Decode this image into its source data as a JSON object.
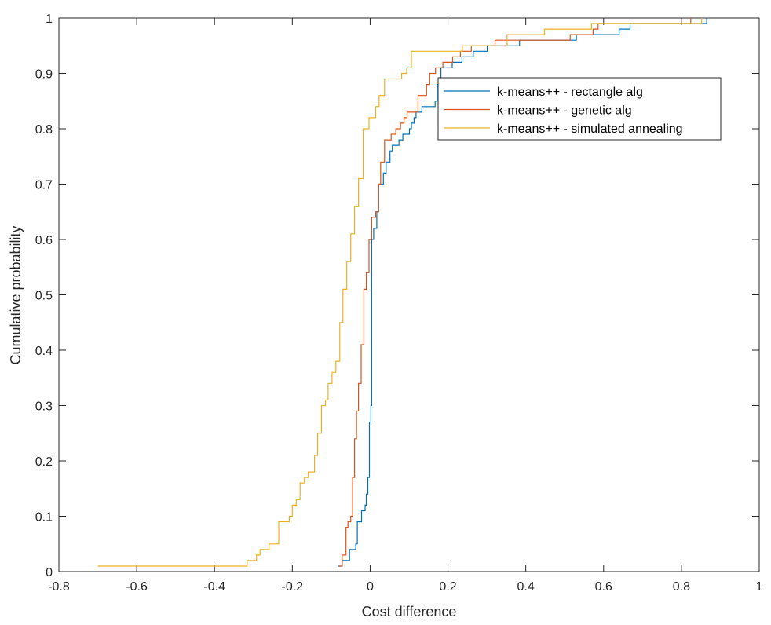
{
  "chart_data": {
    "type": "line",
    "title": "",
    "xlabel": "Cost difference",
    "ylabel": "Cumulative probability",
    "xlim": [
      -0.8,
      1
    ],
    "ylim": [
      0,
      1
    ],
    "xticks": [
      "-0.8",
      "-0.6",
      "-0.4",
      "-0.2",
      "0",
      "0.2",
      "0.4",
      "0.6",
      "0.8",
      "1"
    ],
    "yticks": [
      "0",
      "0.1",
      "0.2",
      "0.3",
      "0.4",
      "0.5",
      "0.6",
      "0.7",
      "0.8",
      "0.9",
      "1"
    ],
    "grid": false,
    "legend_position": "top-right",
    "step": true,
    "series": [
      {
        "name": "k-means++ - rectangle alg",
        "color": "#0072BD",
        "points": [
          [
            -0.083,
            0.01
          ],
          [
            -0.072,
            0.02
          ],
          [
            -0.053,
            0.04
          ],
          [
            -0.037,
            0.05
          ],
          [
            -0.033,
            0.09
          ],
          [
            -0.022,
            0.11
          ],
          [
            -0.013,
            0.12
          ],
          [
            -0.01,
            0.14
          ],
          [
            -0.006,
            0.17
          ],
          [
            -0.002,
            0.27
          ],
          [
            0.002,
            0.3
          ],
          [
            0.004,
            0.6
          ],
          [
            0.009,
            0.62
          ],
          [
            0.017,
            0.65
          ],
          [
            0.022,
            0.7
          ],
          [
            0.034,
            0.72
          ],
          [
            0.041,
            0.74
          ],
          [
            0.051,
            0.76
          ],
          [
            0.057,
            0.77
          ],
          [
            0.074,
            0.78
          ],
          [
            0.084,
            0.79
          ],
          [
            0.101,
            0.8
          ],
          [
            0.106,
            0.81
          ],
          [
            0.113,
            0.82
          ],
          [
            0.118,
            0.83
          ],
          [
            0.133,
            0.84
          ],
          [
            0.167,
            0.85
          ],
          [
            0.172,
            0.88
          ],
          [
            0.182,
            0.91
          ],
          [
            0.211,
            0.92
          ],
          [
            0.236,
            0.93
          ],
          [
            0.265,
            0.94
          ],
          [
            0.301,
            0.95
          ],
          [
            0.384,
            0.96
          ],
          [
            0.53,
            0.97
          ],
          [
            0.64,
            0.98
          ],
          [
            0.668,
            0.99
          ],
          [
            0.865,
            1.0
          ]
        ]
      },
      {
        "name": "k-means++ - genetic alg",
        "color": "#D95319",
        "points": [
          [
            -0.08,
            0.01
          ],
          [
            -0.072,
            0.03
          ],
          [
            -0.062,
            0.08
          ],
          [
            -0.057,
            0.09
          ],
          [
            -0.05,
            0.1
          ],
          [
            -0.045,
            0.17
          ],
          [
            -0.04,
            0.24
          ],
          [
            -0.035,
            0.29
          ],
          [
            -0.03,
            0.34
          ],
          [
            -0.023,
            0.41
          ],
          [
            -0.016,
            0.51
          ],
          [
            -0.01,
            0.54
          ],
          [
            -0.003,
            0.6
          ],
          [
            0.004,
            0.64
          ],
          [
            0.014,
            0.65
          ],
          [
            0.021,
            0.7
          ],
          [
            0.027,
            0.74
          ],
          [
            0.037,
            0.78
          ],
          [
            0.054,
            0.79
          ],
          [
            0.066,
            0.8
          ],
          [
            0.078,
            0.81
          ],
          [
            0.087,
            0.82
          ],
          [
            0.095,
            0.83
          ],
          [
            0.123,
            0.86
          ],
          [
            0.145,
            0.88
          ],
          [
            0.153,
            0.9
          ],
          [
            0.168,
            0.91
          ],
          [
            0.187,
            0.92
          ],
          [
            0.212,
            0.93
          ],
          [
            0.232,
            0.94
          ],
          [
            0.26,
            0.95
          ],
          [
            0.321,
            0.96
          ],
          [
            0.514,
            0.97
          ],
          [
            0.573,
            0.98
          ],
          [
            0.586,
            0.99
          ],
          [
            0.824,
            1.0
          ]
        ]
      },
      {
        "name": "k-means++ - simulated annealing",
        "color": "#EDB120",
        "points": [
          [
            -0.7,
            0.01
          ],
          [
            -0.316,
            0.02
          ],
          [
            -0.292,
            0.03
          ],
          [
            -0.283,
            0.04
          ],
          [
            -0.26,
            0.05
          ],
          [
            -0.235,
            0.09
          ],
          [
            -0.208,
            0.1
          ],
          [
            -0.2,
            0.12
          ],
          [
            -0.19,
            0.13
          ],
          [
            -0.18,
            0.16
          ],
          [
            -0.169,
            0.17
          ],
          [
            -0.159,
            0.18
          ],
          [
            -0.143,
            0.21
          ],
          [
            -0.135,
            0.25
          ],
          [
            -0.125,
            0.3
          ],
          [
            -0.115,
            0.31
          ],
          [
            -0.108,
            0.34
          ],
          [
            -0.098,
            0.36
          ],
          [
            -0.088,
            0.38
          ],
          [
            -0.078,
            0.45
          ],
          [
            -0.07,
            0.51
          ],
          [
            -0.06,
            0.56
          ],
          [
            -0.05,
            0.61
          ],
          [
            -0.04,
            0.66
          ],
          [
            -0.03,
            0.71
          ],
          [
            -0.018,
            0.8
          ],
          [
            -0.003,
            0.82
          ],
          [
            0.014,
            0.84
          ],
          [
            0.023,
            0.86
          ],
          [
            0.037,
            0.89
          ],
          [
            0.081,
            0.9
          ],
          [
            0.094,
            0.91
          ],
          [
            0.106,
            0.94
          ],
          [
            0.237,
            0.95
          ],
          [
            0.352,
            0.97
          ],
          [
            0.448,
            0.98
          ],
          [
            0.569,
            0.99
          ],
          [
            0.852,
            1.0
          ]
        ]
      }
    ]
  }
}
